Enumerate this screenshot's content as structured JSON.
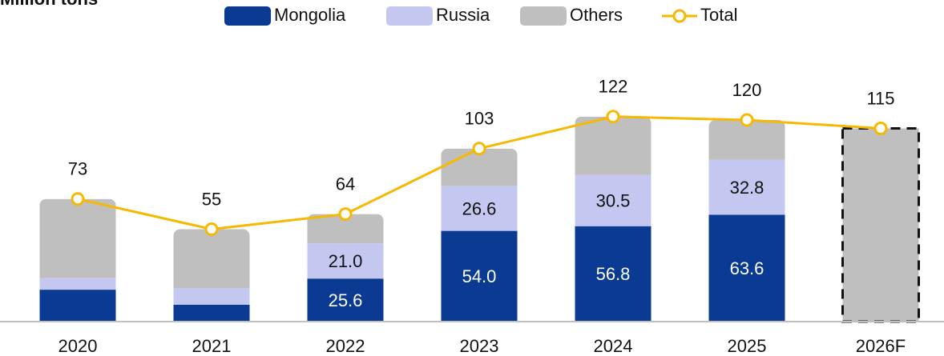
{
  "chart_data": {
    "type": "stacked_bar_line",
    "subtitle": "Million tons",
    "categories": [
      "2020",
      "2021",
      "2022",
      "2023",
      "2024",
      "2025",
      "2026F"
    ],
    "series": [
      {
        "name": "Mongolia",
        "color": "#0b3a92",
        "label_color": "#ffffff",
        "values": [
          19,
          10,
          25.6,
          54.0,
          56.8,
          63.6,
          null
        ],
        "value_labels": [
          null,
          null,
          "25.6",
          "54.0",
          "56.8",
          "63.6",
          null
        ]
      },
      {
        "name": "Russia",
        "color": "#c4c8f0",
        "label_color": "#111111",
        "values": [
          7,
          10,
          21.0,
          26.6,
          30.5,
          32.8,
          null
        ],
        "value_labels": [
          null,
          null,
          "21.0",
          "26.6",
          "30.5",
          "32.8",
          null
        ]
      },
      {
        "name": "Others",
        "color": "#bfbfbf",
        "values": [
          47,
          35,
          17.4,
          22.4,
          34.7,
          23.6,
          115
        ]
      }
    ],
    "line": {
      "name": "Total",
      "color": "#f6b800",
      "values": [
        73,
        55,
        64,
        103,
        122,
        120,
        115
      ]
    },
    "ylim": [
      0,
      130
    ]
  }
}
